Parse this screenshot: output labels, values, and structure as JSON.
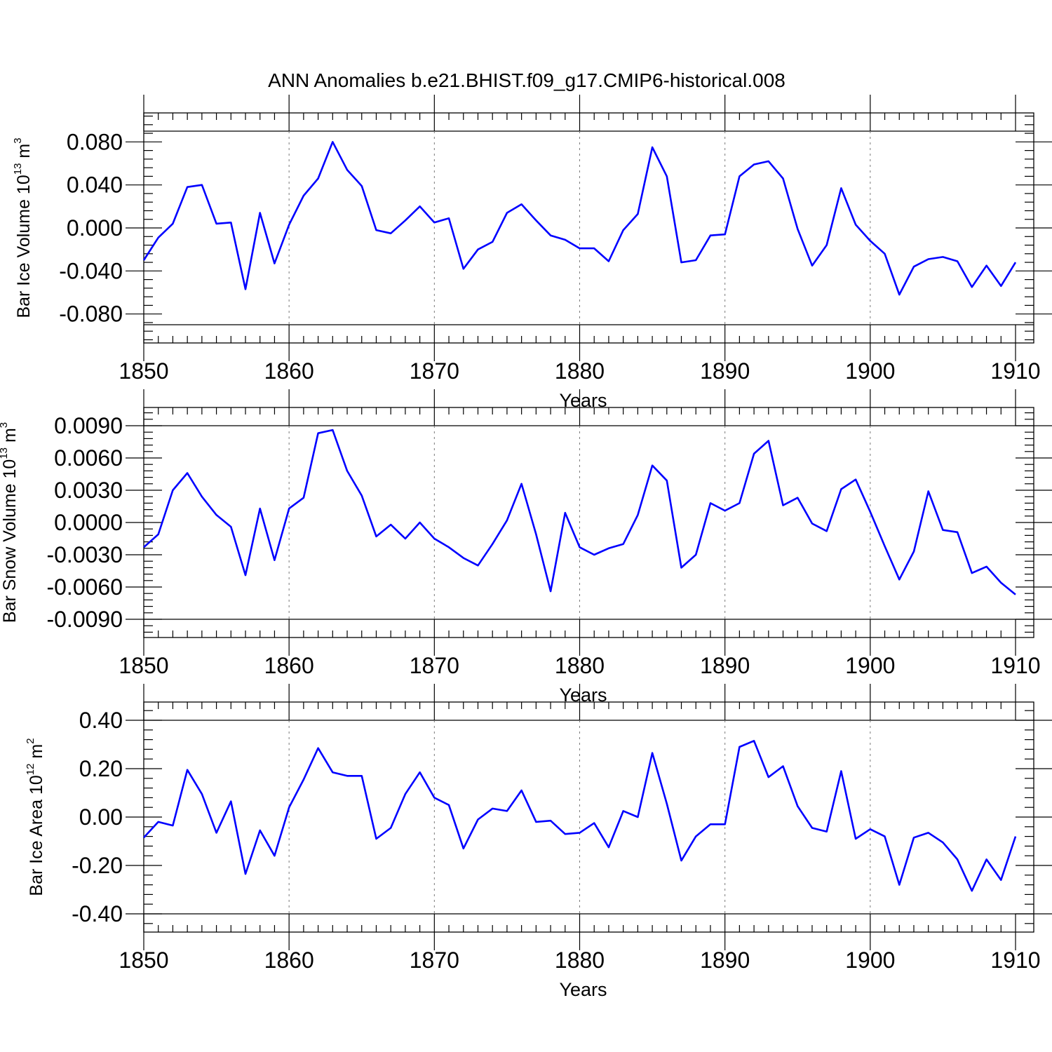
{
  "figure_title": "ANN Anomalies b.e21.BHIST.f09_g17.CMIP6-historical.008",
  "chart_data": [
    {
      "type": "line",
      "ylabel": "Bar Ice Volume 10",
      "ylabel_exp": "13",
      "ylabel_unit": " m",
      "ylabel_unit_exp": "3",
      "xlabel": "Years",
      "xlim": [
        1850,
        1910
      ],
      "ylim": [
        -0.09,
        0.09
      ],
      "yticks": [
        0.08,
        0.04,
        0.0,
        -0.04,
        -0.08
      ],
      "ytick_labels": [
        "0.080",
        "0.040",
        "0.000",
        "-0.040",
        "-0.080"
      ],
      "xticks": [
        1850,
        1860,
        1870,
        1880,
        1890,
        1900,
        1910
      ],
      "xtick_labels": [
        "1850",
        "1860",
        "1870",
        "1880",
        "1890",
        "1900",
        "1910"
      ],
      "series": [
        {
          "name": "Bar Ice Volume",
          "color": "#0000ff",
          "x": [
            1850,
            1851,
            1852,
            1853,
            1854,
            1855,
            1856,
            1857,
            1858,
            1859,
            1860,
            1861,
            1862,
            1863,
            1864,
            1865,
            1866,
            1867,
            1868,
            1869,
            1870,
            1871,
            1872,
            1873,
            1874,
            1875,
            1876,
            1877,
            1878,
            1879,
            1880,
            1881,
            1882,
            1883,
            1884,
            1885,
            1886,
            1887,
            1888,
            1889,
            1890,
            1891,
            1892,
            1893,
            1894,
            1895,
            1896,
            1897,
            1898,
            1899,
            1900,
            1901,
            1902,
            1903,
            1904,
            1905,
            1906,
            1907,
            1908,
            1909,
            1910
          ],
          "values": [
            -0.03,
            -0.009,
            0.004,
            0.038,
            0.04,
            0.004,
            0.005,
            -0.057,
            0.014,
            -0.033,
            0.003,
            0.03,
            0.046,
            0.08,
            0.054,
            0.039,
            -0.002,
            -0.005,
            0.007,
            0.02,
            0.005,
            0.009,
            -0.038,
            -0.02,
            -0.013,
            0.014,
            0.022,
            0.007,
            -0.007,
            -0.011,
            -0.019,
            -0.019,
            -0.031,
            -0.002,
            0.013,
            0.075,
            0.048,
            -0.032,
            -0.03,
            -0.007,
            -0.006,
            0.048,
            0.059,
            0.062,
            0.046,
            -0.001,
            -0.035,
            -0.016,
            0.037,
            0.003,
            -0.012,
            -0.024,
            -0.062,
            -0.036,
            -0.029,
            -0.027,
            -0.031,
            -0.055,
            -0.035,
            -0.054,
            -0.032
          ]
        }
      ]
    },
    {
      "type": "line",
      "ylabel": "Bar Snow Volume 10",
      "ylabel_exp": "13",
      "ylabel_unit": " m",
      "ylabel_unit_exp": "3",
      "xlabel": "Years",
      "xlim": [
        1850,
        1910
      ],
      "ylim": [
        -0.009,
        0.009
      ],
      "yticks": [
        0.009,
        0.006,
        0.003,
        0.0,
        -0.003,
        -0.006,
        -0.009
      ],
      "ytick_labels": [
        "0.0090",
        "0.0060",
        "0.0030",
        "0.0000",
        "-0.0030",
        "-0.0060",
        "-0.0090"
      ],
      "xticks": [
        1850,
        1860,
        1870,
        1880,
        1890,
        1900,
        1910
      ],
      "xtick_labels": [
        "1850",
        "1860",
        "1870",
        "1880",
        "1890",
        "1900",
        "1910"
      ],
      "series": [
        {
          "name": "Bar Snow Volume",
          "color": "#0000ff",
          "x": [
            1850,
            1851,
            1852,
            1853,
            1854,
            1855,
            1856,
            1857,
            1858,
            1859,
            1860,
            1861,
            1862,
            1863,
            1864,
            1865,
            1866,
            1867,
            1868,
            1869,
            1870,
            1871,
            1872,
            1873,
            1874,
            1875,
            1876,
            1877,
            1878,
            1879,
            1880,
            1881,
            1882,
            1883,
            1884,
            1885,
            1886,
            1887,
            1888,
            1889,
            1890,
            1891,
            1892,
            1893,
            1894,
            1895,
            1896,
            1897,
            1898,
            1899,
            1900,
            1901,
            1902,
            1903,
            1904,
            1905,
            1906,
            1907,
            1908,
            1909,
            1910
          ],
          "values": [
            -0.0023,
            -0.0011,
            0.003,
            0.0046,
            0.0024,
            0.0007,
            -0.0004,
            -0.0049,
            0.0013,
            -0.0035,
            0.0013,
            0.0023,
            0.0083,
            0.0086,
            0.0048,
            0.0025,
            -0.0013,
            -0.0002,
            -0.0015,
            0.0,
            -0.0015,
            -0.0023,
            -0.0033,
            -0.004,
            -0.002,
            0.0002,
            0.0036,
            -0.0011,
            -0.0064,
            0.0009,
            -0.0023,
            -0.003,
            -0.0024,
            -0.002,
            0.0007,
            0.0053,
            0.0039,
            -0.0042,
            -0.003,
            0.0018,
            0.0011,
            0.0018,
            0.0064,
            0.0076,
            0.0016,
            0.0023,
            -0.0001,
            -0.0008,
            0.0031,
            0.004,
            0.001,
            -0.0022,
            -0.0053,
            -0.0027,
            0.0029,
            -0.0007,
            -0.0009,
            -0.0047,
            -0.0041,
            -0.0056,
            -0.0067
          ]
        }
      ]
    },
    {
      "type": "line",
      "ylabel": "Bar Ice Area 10",
      "ylabel_exp": "12",
      "ylabel_unit": " m",
      "ylabel_unit_exp": "2",
      "xlabel": "Years",
      "xlim": [
        1850,
        1910
      ],
      "ylim": [
        -0.4,
        0.4
      ],
      "yticks": [
        0.4,
        0.2,
        0.0,
        -0.2,
        -0.4
      ],
      "ytick_labels": [
        "0.40",
        "0.20",
        "0.00",
        "-0.20",
        "-0.40"
      ],
      "xticks": [
        1850,
        1860,
        1870,
        1880,
        1890,
        1900,
        1910
      ],
      "xtick_labels": [
        "1850",
        "1860",
        "1870",
        "1880",
        "1890",
        "1900",
        "1910"
      ],
      "series": [
        {
          "name": "Bar Ice Area",
          "color": "#0000ff",
          "x": [
            1850,
            1851,
            1852,
            1853,
            1854,
            1855,
            1856,
            1857,
            1858,
            1859,
            1860,
            1861,
            1862,
            1863,
            1864,
            1865,
            1866,
            1867,
            1868,
            1869,
            1870,
            1871,
            1872,
            1873,
            1874,
            1875,
            1876,
            1877,
            1878,
            1879,
            1880,
            1881,
            1882,
            1883,
            1884,
            1885,
            1886,
            1887,
            1888,
            1889,
            1890,
            1891,
            1892,
            1893,
            1894,
            1895,
            1896,
            1897,
            1898,
            1899,
            1900,
            1901,
            1902,
            1903,
            1904,
            1905,
            1906,
            1907,
            1908,
            1909,
            1910
          ],
          "values": [
            -0.085,
            -0.02,
            -0.035,
            0.195,
            0.095,
            -0.065,
            0.065,
            -0.235,
            -0.055,
            -0.16,
            0.04,
            0.155,
            0.285,
            0.185,
            0.17,
            0.17,
            -0.09,
            -0.045,
            0.095,
            0.185,
            0.08,
            0.05,
            -0.13,
            -0.01,
            0.035,
            0.025,
            0.11,
            -0.02,
            -0.015,
            -0.07,
            -0.065,
            -0.025,
            -0.125,
            0.025,
            0.0,
            0.265,
            0.055,
            -0.18,
            -0.08,
            -0.03,
            -0.03,
            0.29,
            0.315,
            0.165,
            0.21,
            0.045,
            -0.045,
            -0.06,
            0.19,
            -0.09,
            -0.05,
            -0.08,
            -0.28,
            -0.085,
            -0.065,
            -0.105,
            -0.175,
            -0.305,
            -0.175,
            -0.26,
            -0.08
          ]
        }
      ]
    }
  ]
}
